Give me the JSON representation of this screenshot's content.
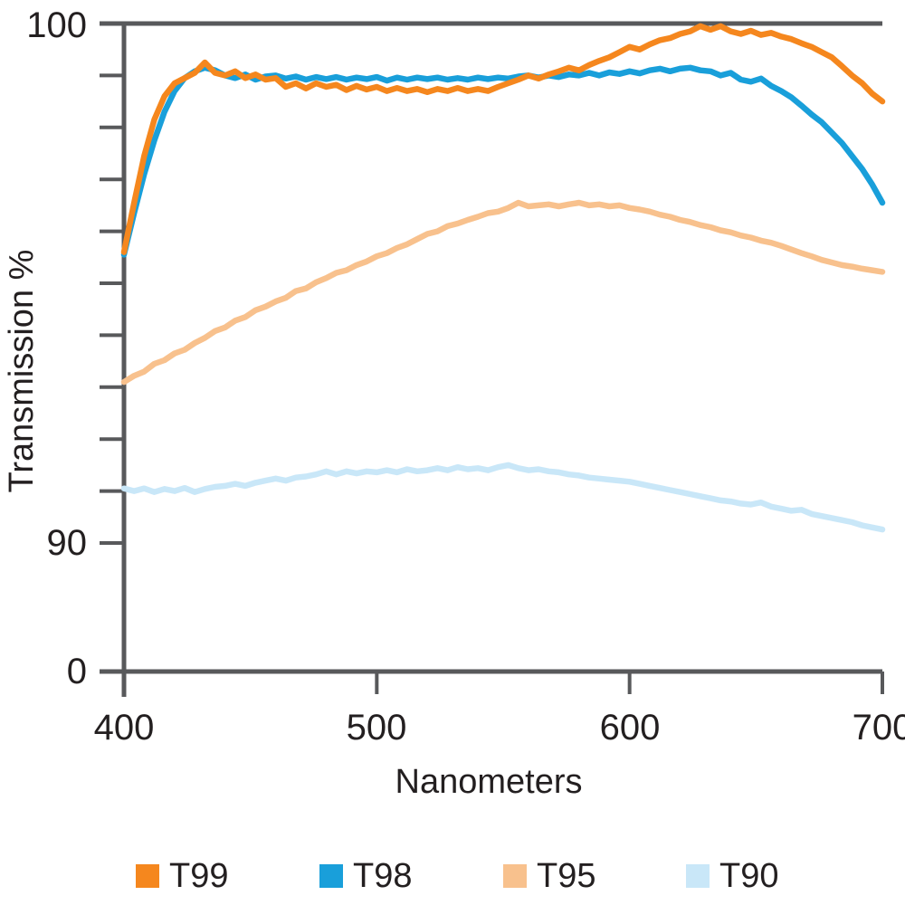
{
  "chart_data": {
    "type": "line",
    "title": "",
    "xlabel": "Nanometers",
    "ylabel": "Transmission %",
    "x_axis": {
      "range": [
        400,
        700
      ],
      "ticks": [
        {
          "value": 400,
          "label": "400"
        },
        {
          "value": 500,
          "label": "500"
        },
        {
          "value": 600,
          "label": "600"
        },
        {
          "value": 700,
          "label": "700"
        }
      ]
    },
    "y_axis": {
      "unit": "%",
      "labeled_ticks": [
        {
          "value": 100,
          "label": "100"
        },
        {
          "value": 90,
          "label": "90"
        },
        {
          "value": 0,
          "label": "0"
        }
      ],
      "minor_ticks": [
        91,
        92,
        93,
        94,
        95,
        96,
        97,
        98,
        99
      ],
      "axis_break_between": [
        0,
        90
      ],
      "grid": false
    },
    "legend_position": "bottom",
    "x_start": 400,
    "x_step": 4,
    "series": [
      {
        "name": "T90",
        "color": "#C9E7F8",
        "values": [
          91.05,
          91.0,
          91.05,
          90.98,
          91.04,
          91.0,
          91.06,
          90.98,
          91.04,
          91.08,
          91.1,
          91.14,
          91.1,
          91.16,
          91.2,
          91.24,
          91.2,
          91.26,
          91.28,
          91.32,
          91.38,
          91.32,
          91.38,
          91.34,
          91.38,
          91.36,
          91.4,
          91.36,
          91.42,
          91.38,
          91.4,
          91.44,
          91.4,
          91.46,
          91.42,
          91.44,
          91.4,
          91.46,
          91.5,
          91.44,
          91.4,
          91.42,
          91.38,
          91.36,
          91.32,
          91.3,
          91.26,
          91.24,
          91.22,
          91.2,
          91.18,
          91.14,
          91.1,
          91.06,
          91.02,
          90.98,
          90.94,
          90.9,
          90.86,
          90.82,
          90.8,
          90.76,
          90.74,
          90.78,
          90.7,
          90.66,
          90.62,
          90.64,
          90.56,
          90.52,
          90.48,
          90.44,
          90.4,
          90.34,
          90.3,
          90.26
        ]
      },
      {
        "name": "T95",
        "color": "#F8C18D",
        "values": [
          93.1,
          93.22,
          93.3,
          93.45,
          93.52,
          93.65,
          93.72,
          93.85,
          93.95,
          94.08,
          94.15,
          94.28,
          94.35,
          94.48,
          94.55,
          94.65,
          94.72,
          94.85,
          94.9,
          95.02,
          95.1,
          95.2,
          95.25,
          95.35,
          95.42,
          95.52,
          95.58,
          95.68,
          95.75,
          95.85,
          95.95,
          96.0,
          96.1,
          96.15,
          96.22,
          96.28,
          96.35,
          96.38,
          96.45,
          96.55,
          96.48,
          96.5,
          96.52,
          96.48,
          96.52,
          96.55,
          96.5,
          96.52,
          96.48,
          96.5,
          96.45,
          96.42,
          96.38,
          96.32,
          96.28,
          96.22,
          96.18,
          96.12,
          96.08,
          96.02,
          95.98,
          95.92,
          95.88,
          95.82,
          95.78,
          95.72,
          95.65,
          95.58,
          95.52,
          95.45,
          95.4,
          95.35,
          95.32,
          95.28,
          95.25,
          95.22
        ]
      },
      {
        "name": "T98",
        "color": "#199FDA",
        "values": [
          95.55,
          96.35,
          97.1,
          97.75,
          98.3,
          98.7,
          98.95,
          99.08,
          99.15,
          99.1,
          99.0,
          98.95,
          99.02,
          98.92,
          98.98,
          99.0,
          98.94,
          98.98,
          98.92,
          98.97,
          98.93,
          98.97,
          98.92,
          98.96,
          98.93,
          98.97,
          98.9,
          98.96,
          98.92,
          98.96,
          98.93,
          98.96,
          98.92,
          98.95,
          98.92,
          98.96,
          98.93,
          98.96,
          98.94,
          98.98,
          99.0,
          98.96,
          99.0,
          98.97,
          99.02,
          99.0,
          99.05,
          99.0,
          99.06,
          99.03,
          99.08,
          99.04,
          99.1,
          99.13,
          99.08,
          99.13,
          99.15,
          99.1,
          99.08,
          99.0,
          99.05,
          98.92,
          98.88,
          98.94,
          98.8,
          98.7,
          98.58,
          98.42,
          98.25,
          98.1,
          97.9,
          97.7,
          97.45,
          97.2,
          96.9,
          96.55
        ]
      },
      {
        "name": "T99",
        "color": "#F5871E",
        "values": [
          95.6,
          96.55,
          97.45,
          98.15,
          98.6,
          98.85,
          98.95,
          99.05,
          99.25,
          99.05,
          99.0,
          99.08,
          98.95,
          99.02,
          98.92,
          98.95,
          98.78,
          98.85,
          98.75,
          98.85,
          98.78,
          98.82,
          98.72,
          98.8,
          98.73,
          98.78,
          98.7,
          98.76,
          98.7,
          98.74,
          98.68,
          98.74,
          98.7,
          98.76,
          98.7,
          98.74,
          98.7,
          98.78,
          98.85,
          98.92,
          99.0,
          98.94,
          99.02,
          99.08,
          99.15,
          99.1,
          99.2,
          99.28,
          99.35,
          99.45,
          99.55,
          99.5,
          99.6,
          99.68,
          99.72,
          99.8,
          99.85,
          99.95,
          99.88,
          99.95,
          99.85,
          99.8,
          99.86,
          99.78,
          99.82,
          99.75,
          99.7,
          99.62,
          99.55,
          99.45,
          99.35,
          99.18,
          99.0,
          98.85,
          98.65,
          98.5
        ]
      }
    ]
  },
  "axis_style": {
    "axis_color": "#58595B",
    "text_color": "#231F20"
  },
  "legend": {
    "items": [
      {
        "label": "T99",
        "color": "#F5871E"
      },
      {
        "label": "T98",
        "color": "#199FDA"
      },
      {
        "label": "T95",
        "color": "#F8C18D"
      },
      {
        "label": "T90",
        "color": "#C9E7F8"
      }
    ]
  }
}
